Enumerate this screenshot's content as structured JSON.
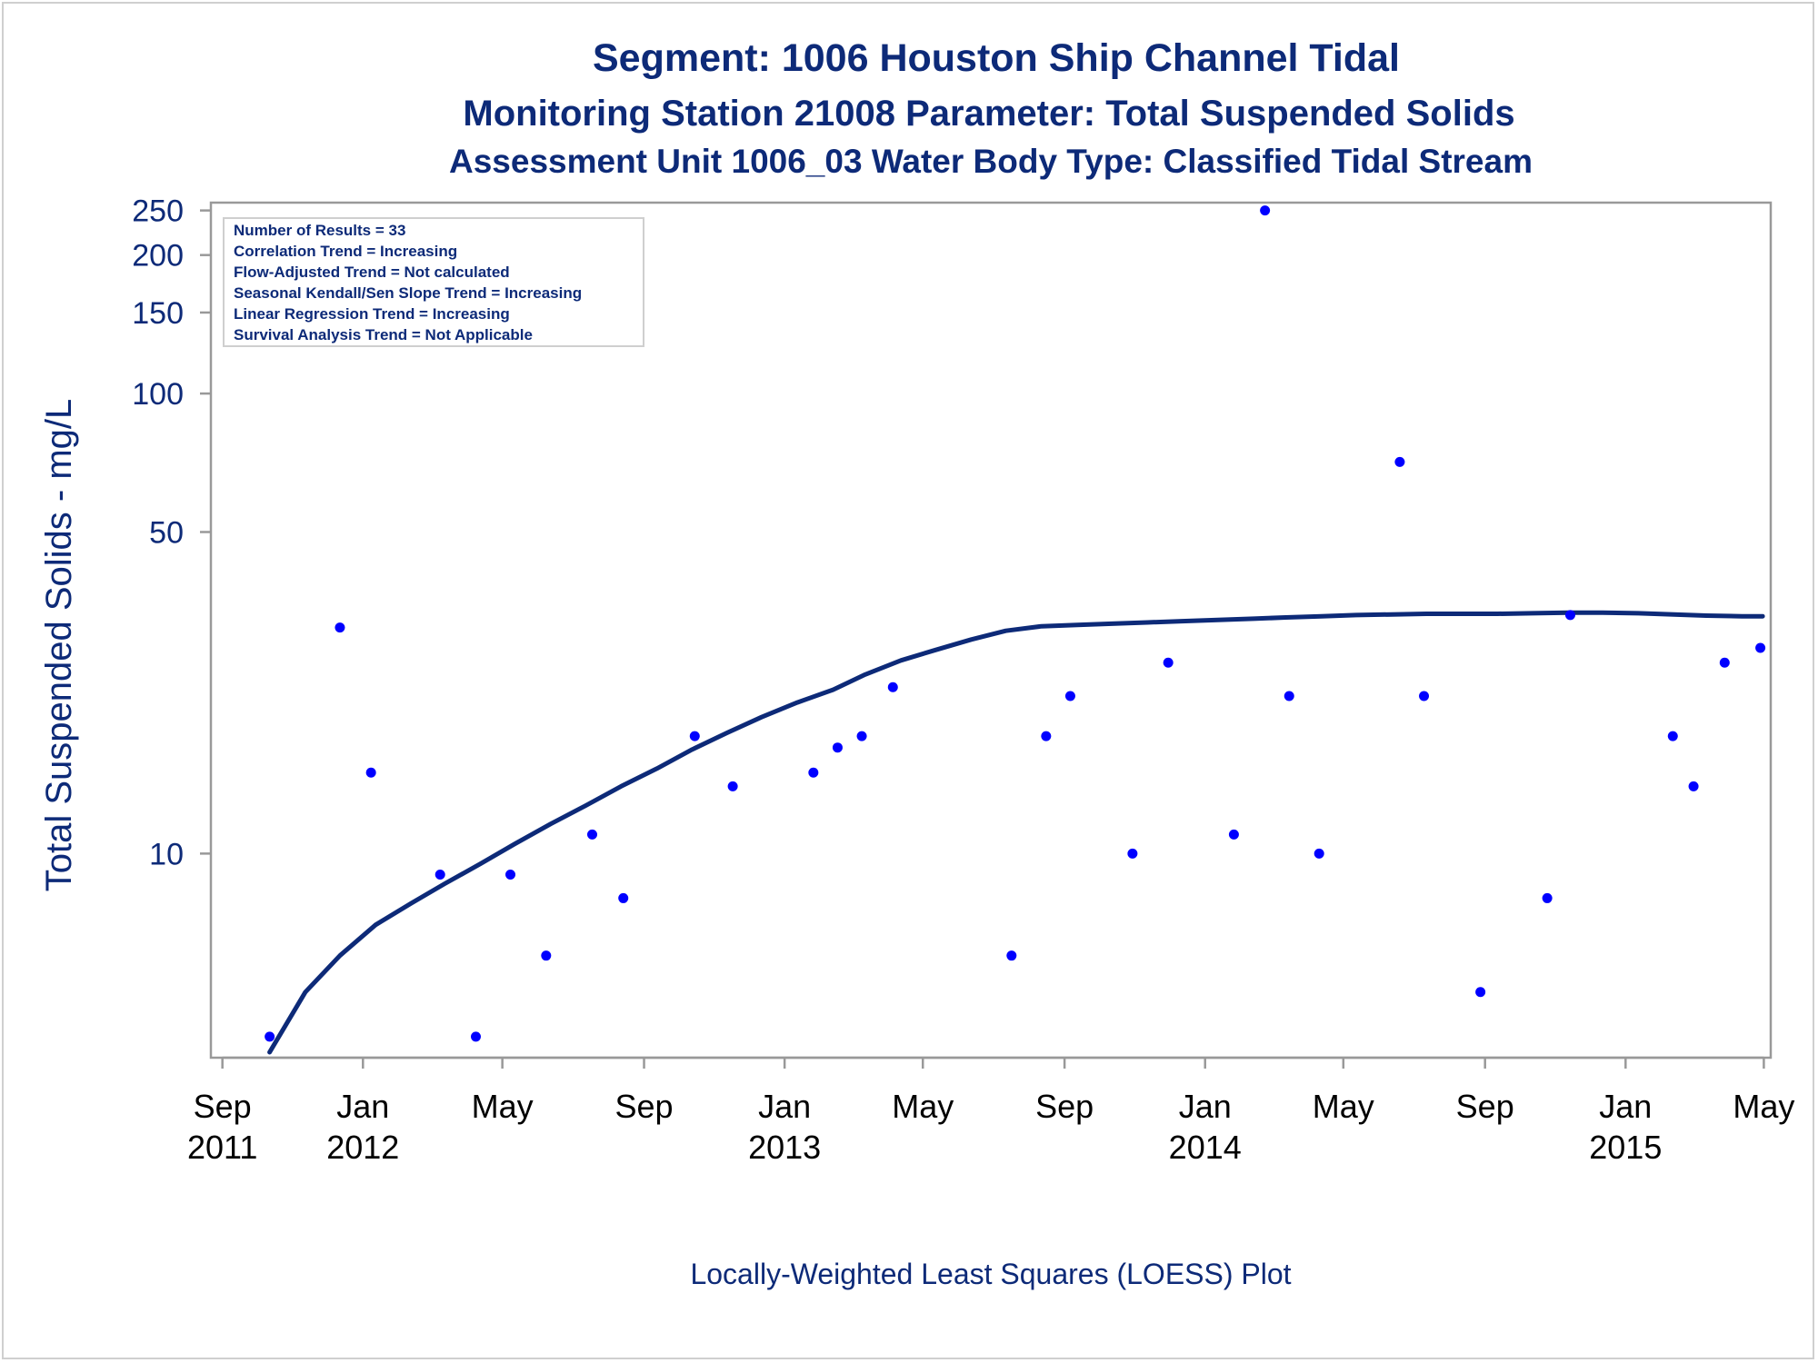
{
  "chart_data": {
    "type": "scatter",
    "title": "Segment: 1006  Houston Ship Channel Tidal",
    "subtitle": "Monitoring Station 21008 Parameter: Total Suspended Solids",
    "subtitle2": "Assessment Unit 1006_03   Water Body Type: Classified Tidal Stream",
    "ylabel": "Total Suspended Solids - mg/L",
    "footnote": "Locally-Weighted Least Squares (LOESS) Plot",
    "y_scale": "log",
    "ylim": [
      3.6,
      260
    ],
    "xlim": [
      "2011-08-22",
      "2015-05-07"
    ],
    "grid": false,
    "y_ticks": [
      {
        "value": 10,
        "label": "10"
      },
      {
        "value": 50,
        "label": "50"
      },
      {
        "value": 100,
        "label": "100"
      },
      {
        "value": 150,
        "label": "150"
      },
      {
        "value": 200,
        "label": "200"
      },
      {
        "value": 250,
        "label": "250"
      }
    ],
    "x_ticks": [
      {
        "date": "2011-09-01",
        "line1": "Sep",
        "line2": "2011"
      },
      {
        "date": "2012-01-01",
        "line1": "Jan",
        "line2": "2012"
      },
      {
        "date": "2012-05-01",
        "line1": "May",
        "line2": ""
      },
      {
        "date": "2012-09-01",
        "line1": "Sep",
        "line2": ""
      },
      {
        "date": "2013-01-01",
        "line1": "Jan",
        "line2": "2013"
      },
      {
        "date": "2013-05-01",
        "line1": "May",
        "line2": ""
      },
      {
        "date": "2013-09-01",
        "line1": "Sep",
        "line2": ""
      },
      {
        "date": "2014-01-01",
        "line1": "Jan",
        "line2": "2014"
      },
      {
        "date": "2014-05-01",
        "line1": "May",
        "line2": ""
      },
      {
        "date": "2014-09-01",
        "line1": "Sep",
        "line2": ""
      },
      {
        "date": "2015-01-01",
        "line1": "Jan",
        "line2": "2015"
      },
      {
        "date": "2015-05-01",
        "line1": "May",
        "line2": ""
      }
    ],
    "stats_box": [
      "Number of Results = 33",
      "Correlation Trend = Increasing",
      "Flow-Adjusted Trend = Not calculated",
      "Seasonal Kendall/Sen Slope Trend = Increasing",
      "Linear Regression Trend = Increasing",
      "Survival Analysis Trend = Not Applicable"
    ],
    "colors": {
      "points": "#0000ff",
      "loess": "#0d2a78",
      "text": "#0d2a78",
      "axis": "#999999"
    },
    "series": [
      {
        "type": "scatter",
        "points": [
          {
            "x": "2011-10-12",
            "y": 4
          },
          {
            "x": "2011-12-12",
            "y": 31
          },
          {
            "x": "2012-01-08",
            "y": 15
          },
          {
            "x": "2012-03-08",
            "y": 9
          },
          {
            "x": "2012-04-08",
            "y": 4
          },
          {
            "x": "2012-05-08",
            "y": 9
          },
          {
            "x": "2012-06-08",
            "y": 6
          },
          {
            "x": "2012-07-18",
            "y": 11
          },
          {
            "x": "2012-08-14",
            "y": 8
          },
          {
            "x": "2012-10-15",
            "y": 18
          },
          {
            "x": "2012-11-17",
            "y": 14
          },
          {
            "x": "2013-01-26",
            "y": 15
          },
          {
            "x": "2013-02-16",
            "y": 17
          },
          {
            "x": "2013-03-09",
            "y": 18
          },
          {
            "x": "2013-04-05",
            "y": 23
          },
          {
            "x": "2013-07-17",
            "y": 6
          },
          {
            "x": "2013-08-16",
            "y": 18
          },
          {
            "x": "2013-09-06",
            "y": 22
          },
          {
            "x": "2013-10-30",
            "y": 10
          },
          {
            "x": "2013-11-30",
            "y": 26
          },
          {
            "x": "2014-01-26",
            "y": 11
          },
          {
            "x": "2014-02-22",
            "y": 250
          },
          {
            "x": "2014-03-15",
            "y": 22
          },
          {
            "x": "2014-04-10",
            "y": 10
          },
          {
            "x": "2014-06-19",
            "y": 71
          },
          {
            "x": "2014-07-10",
            "y": 22
          },
          {
            "x": "2014-08-28",
            "y": 5
          },
          {
            "x": "2014-10-25",
            "y": 8
          },
          {
            "x": "2014-11-14",
            "y": 33
          },
          {
            "x": "2015-02-11",
            "y": 18
          },
          {
            "x": "2015-03-01",
            "y": 14
          },
          {
            "x": "2015-03-28",
            "y": 26
          },
          {
            "x": "2015-04-28",
            "y": 28
          }
        ]
      },
      {
        "type": "line",
        "points": [
          {
            "x": "2011-10-12",
            "y": 3.7
          },
          {
            "x": "2011-11-12",
            "y": 5.0
          },
          {
            "x": "2011-12-12",
            "y": 6.0
          },
          {
            "x": "2012-01-12",
            "y": 7.0
          },
          {
            "x": "2012-02-12",
            "y": 7.8
          },
          {
            "x": "2012-03-12",
            "y": 8.6
          },
          {
            "x": "2012-04-12",
            "y": 9.5
          },
          {
            "x": "2012-05-12",
            "y": 10.5
          },
          {
            "x": "2012-06-12",
            "y": 11.6
          },
          {
            "x": "2012-07-12",
            "y": 12.7
          },
          {
            "x": "2012-08-12",
            "y": 14.0
          },
          {
            "x": "2012-09-12",
            "y": 15.3
          },
          {
            "x": "2012-10-12",
            "y": 16.8
          },
          {
            "x": "2012-11-12",
            "y": 18.3
          },
          {
            "x": "2012-12-12",
            "y": 19.8
          },
          {
            "x": "2013-01-12",
            "y": 21.3
          },
          {
            "x": "2013-02-12",
            "y": 22.7
          },
          {
            "x": "2013-03-12",
            "y": 24.5
          },
          {
            "x": "2013-04-12",
            "y": 26.3
          },
          {
            "x": "2013-05-12",
            "y": 27.7
          },
          {
            "x": "2013-06-12",
            "y": 29.2
          },
          {
            "x": "2013-07-12",
            "y": 30.5
          },
          {
            "x": "2013-08-12",
            "y": 31.2
          },
          {
            "x": "2013-09-12",
            "y": 31.4
          },
          {
            "x": "2013-10-12",
            "y": 31.6
          },
          {
            "x": "2013-11-12",
            "y": 31.8
          },
          {
            "x": "2013-12-12",
            "y": 32.0
          },
          {
            "x": "2014-01-12",
            "y": 32.2
          },
          {
            "x": "2014-02-12",
            "y": 32.4
          },
          {
            "x": "2014-03-12",
            "y": 32.6
          },
          {
            "x": "2014-04-12",
            "y": 32.8
          },
          {
            "x": "2014-05-12",
            "y": 33.0
          },
          {
            "x": "2014-06-12",
            "y": 33.1
          },
          {
            "x": "2014-07-12",
            "y": 33.2
          },
          {
            "x": "2014-08-12",
            "y": 33.2
          },
          {
            "x": "2014-09-12",
            "y": 33.2
          },
          {
            "x": "2014-10-12",
            "y": 33.3
          },
          {
            "x": "2014-11-12",
            "y": 33.4
          },
          {
            "x": "2014-12-12",
            "y": 33.4
          },
          {
            "x": "2015-01-12",
            "y": 33.3
          },
          {
            "x": "2015-02-12",
            "y": 33.1
          },
          {
            "x": "2015-03-12",
            "y": 32.9
          },
          {
            "x": "2015-04-12",
            "y": 32.8
          },
          {
            "x": "2015-04-30",
            "y": 32.8
          }
        ]
      }
    ]
  }
}
